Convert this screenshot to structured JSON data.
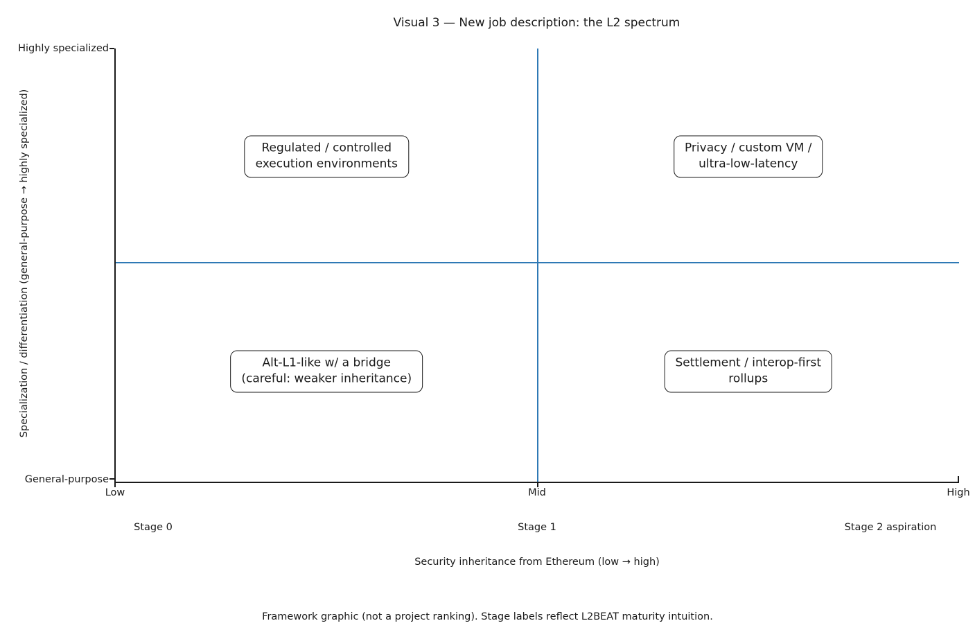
{
  "figure": {
    "title": "Visual 3 — New job description: the L2 spectrum",
    "footnote": "Framework graphic (not a project ranking). Stage labels reflect L2BEAT maturity intuition.",
    "x_axis": {
      "label": "Security inheritance from Ethereum (low → high)",
      "ticks": [
        "Low",
        "Mid",
        "High"
      ],
      "stages": [
        "Stage 0",
        "Stage 1",
        "Stage 2 aspiration"
      ]
    },
    "y_axis": {
      "label": "Specialization / differentiation (general-purpose → highly specialized)",
      "tick_top": "Highly specialized",
      "tick_bottom": "General-purpose"
    },
    "quadrants": {
      "top_left": {
        "line1": "Regulated / controlled",
        "line2": "execution environments"
      },
      "top_right": {
        "line1": "Privacy / custom VM /",
        "line2": "ultra-low-latency"
      },
      "bottom_left": {
        "line1": "Alt-L1-like w/ a bridge",
        "line2": "(careful: weaker inheritance)"
      },
      "bottom_right": {
        "line1": "Settlement / interop-first",
        "line2": "rollups"
      }
    },
    "colors": {
      "crosshair": "#2e79b5",
      "axis": "#1a1a1a",
      "text": "#1a1a1a",
      "background": "#ffffff"
    }
  },
  "chart_data": {
    "type": "scatter",
    "subtype": "quadrant-framework",
    "title": "Visual 3 — New job description: the L2 spectrum",
    "xlabel": "Security inheritance from Ethereum (low → high)",
    "ylabel": "Specialization / differentiation (general-purpose → highly specialized)",
    "xlim": [
      0,
      1
    ],
    "ylim": [
      0,
      1
    ],
    "grid": false,
    "legend": "none",
    "x_ticks": [
      {
        "value": 0,
        "label": "Low"
      },
      {
        "value": 0.5,
        "label": "Mid"
      },
      {
        "value": 1,
        "label": "High"
      }
    ],
    "y_ticks": [
      {
        "value": 0,
        "label": "General-purpose"
      },
      {
        "value": 1,
        "label": "Highly specialized"
      }
    ],
    "reference_lines": [
      {
        "orientation": "vertical",
        "x": 0.5,
        "color": "#2e79b5"
      },
      {
        "orientation": "horizontal",
        "y": 0.5,
        "color": "#2e79b5"
      }
    ],
    "annotations": [
      {
        "x": 0.25,
        "y": 0.75,
        "text": "Regulated / controlled execution environments"
      },
      {
        "x": 0.75,
        "y": 0.75,
        "text": "Privacy / custom VM / ultra-low-latency"
      },
      {
        "x": 0.25,
        "y": 0.25,
        "text": "Alt-L1-like w/ a bridge (careful: weaker inheritance)"
      },
      {
        "x": 0.75,
        "y": 0.25,
        "text": "Settlement / interop-first rollups"
      }
    ],
    "stage_labels": [
      {
        "x": 0.05,
        "label": "Stage 0"
      },
      {
        "x": 0.5,
        "label": "Stage 1"
      },
      {
        "x": 0.92,
        "label": "Stage 2 aspiration"
      }
    ],
    "footnote": "Framework graphic (not a project ranking). Stage labels reflect L2BEAT maturity intuition."
  }
}
